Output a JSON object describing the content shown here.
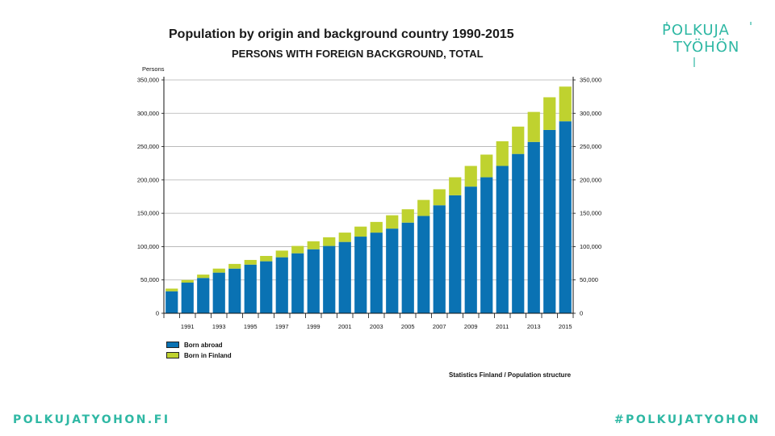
{
  "chart_data": {
    "type": "bar",
    "stacked": true,
    "title": "Population by origin and background country 1990-2015",
    "subtitle": "PERSONS WITH FOREIGN BACKGROUND, TOTAL",
    "ylabel": "Persons",
    "ylim": [
      0,
      350000
    ],
    "yticks": [
      0,
      50000,
      100000,
      150000,
      200000,
      250000,
      300000,
      350000
    ],
    "ytick_labels": [
      "0",
      "50,000",
      "100,000",
      "150,000",
      "200,000",
      "250,000",
      "300,000",
      "350,000"
    ],
    "categories": [
      "1990",
      "1991",
      "1992",
      "1993",
      "1994",
      "1995",
      "1996",
      "1997",
      "1998",
      "1999",
      "2000",
      "2001",
      "2002",
      "2003",
      "2004",
      "2005",
      "2006",
      "2007",
      "2008",
      "2009",
      "2010",
      "2011",
      "2012",
      "2013",
      "2014",
      "2015"
    ],
    "xtick_labels": [
      "1991",
      "1993",
      "1995",
      "1997",
      "1999",
      "2001",
      "2003",
      "2005",
      "2007",
      "2009",
      "2011",
      "2013",
      "2015"
    ],
    "series": [
      {
        "name": "Born abroad",
        "color": "#0a72b3",
        "values": [
          33000,
          46000,
          53000,
          61000,
          67000,
          73000,
          78000,
          84000,
          90000,
          96000,
          101000,
          107000,
          115000,
          121000,
          127000,
          136000,
          146000,
          162000,
          177000,
          190000,
          204000,
          221000,
          239000,
          257000,
          275000,
          288000
        ]
      },
      {
        "name": "Born in Finland",
        "color": "#bfd22f",
        "values": [
          4000,
          4000,
          5000,
          6000,
          7000,
          7000,
          8000,
          10000,
          11000,
          12000,
          13000,
          14000,
          15000,
          16000,
          20000,
          20000,
          24000,
          24000,
          27000,
          31000,
          34000,
          37000,
          41000,
          45000,
          49000,
          52000
        ]
      }
    ],
    "legend": [
      "Born abroad",
      "Born in Finland"
    ],
    "source": "Statistics Finland / Population structure"
  },
  "logo": {
    "line1": "POLKUJA",
    "line2": "TYÖHÖN"
  },
  "footer": {
    "left": "POLKUJATYOHON.FI",
    "right": "#POLKUJATYOHON"
  }
}
